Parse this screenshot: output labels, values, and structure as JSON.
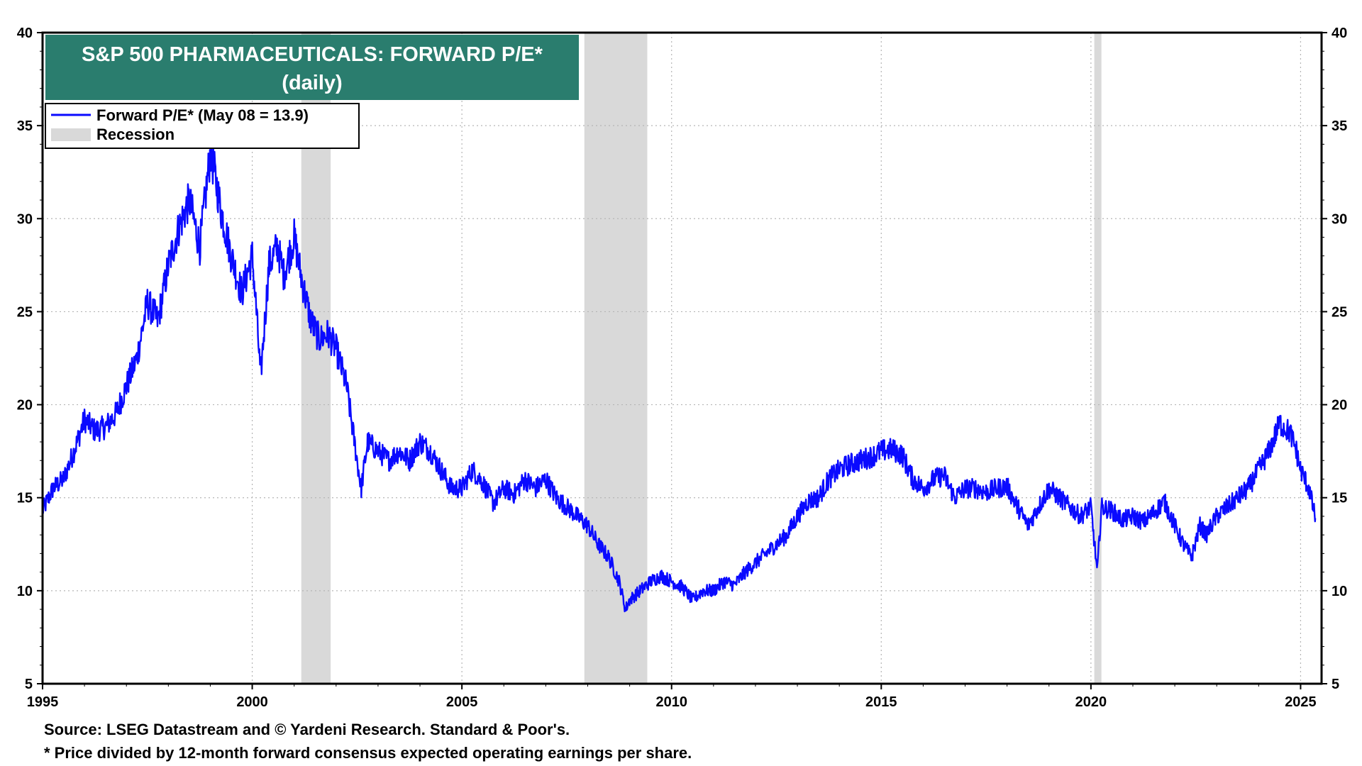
{
  "chart_data": {
    "type": "line",
    "title": "S&P 500 PHARMACEUTICALS: FORWARD P/E*",
    "subtitle": "(daily)",
    "frequency": "daily",
    "xlim": [
      1995.0,
      2025.5
    ],
    "ylim": [
      5,
      40
    ],
    "x_ticks": [
      "1995",
      "2000",
      "2005",
      "2010",
      "2015",
      "2020",
      "2025"
    ],
    "y_ticks": [
      "5",
      "10",
      "15",
      "20",
      "25",
      "30",
      "35",
      "40"
    ],
    "grid": true,
    "legend_position": "top-left",
    "legend": [
      {
        "label": "Forward P/E* (May 08 = 13.9)",
        "color": "#0a0aff",
        "kind": "line"
      },
      {
        "label": "Recession",
        "color": "#d9d9d9",
        "kind": "band"
      }
    ],
    "recessions": [
      [
        2001.17,
        2001.87
      ],
      [
        2007.92,
        2009.42
      ],
      [
        2020.08,
        2020.25
      ]
    ],
    "series": [
      {
        "name": "Forward P/E* (May 08 = 13.9)",
        "color": "#0a0aff",
        "x": [
          1995.0,
          1995.25,
          1995.5,
          1995.75,
          1996.0,
          1996.25,
          1996.5,
          1996.75,
          1997.0,
          1997.25,
          1997.5,
          1997.75,
          1998.0,
          1998.25,
          1998.5,
          1998.75,
          1999.0,
          1999.1,
          1999.25,
          1999.5,
          1999.75,
          2000.0,
          2000.1,
          2000.2,
          2000.4,
          2000.6,
          2000.75,
          2001.0,
          2001.2,
          2001.4,
          2001.6,
          2001.8,
          2002.0,
          2002.25,
          2002.5,
          2002.6,
          2002.75,
          2003.0,
          2003.25,
          2003.5,
          2003.75,
          2004.0,
          2004.25,
          2004.5,
          2004.75,
          2005.0,
          2005.25,
          2005.5,
          2005.75,
          2006.0,
          2006.25,
          2006.5,
          2006.75,
          2007.0,
          2007.25,
          2007.5,
          2007.75,
          2008.0,
          2008.25,
          2008.5,
          2008.75,
          2008.9,
          2009.0,
          2009.25,
          2009.5,
          2009.75,
          2010.0,
          2010.25,
          2010.5,
          2010.75,
          2011.0,
          2011.25,
          2011.5,
          2011.75,
          2012.0,
          2012.25,
          2012.5,
          2012.75,
          2013.0,
          2013.25,
          2013.5,
          2013.75,
          2014.0,
          2014.25,
          2014.5,
          2014.75,
          2015.0,
          2015.25,
          2015.5,
          2015.75,
          2016.0,
          2016.25,
          2016.5,
          2016.75,
          2017.0,
          2017.25,
          2017.5,
          2017.75,
          2018.0,
          2018.25,
          2018.5,
          2018.75,
          2019.0,
          2019.25,
          2019.5,
          2019.75,
          2020.0,
          2020.15,
          2020.25,
          2020.5,
          2020.75,
          2021.0,
          2021.25,
          2021.5,
          2021.75,
          2022.0,
          2022.2,
          2022.4,
          2022.6,
          2022.75,
          2023.0,
          2023.25,
          2023.5,
          2023.75,
          2024.0,
          2024.25,
          2024.5,
          2024.75,
          2024.9,
          2025.0,
          2025.2,
          2025.35
        ],
        "values": [
          14.3,
          15.5,
          16.0,
          17.5,
          19.2,
          18.6,
          18.8,
          19.5,
          21.0,
          22.5,
          25.5,
          24.5,
          27.5,
          29.5,
          31.0,
          28.5,
          33.5,
          32.5,
          30.5,
          28.0,
          26.0,
          28.0,
          25.0,
          21.5,
          27.5,
          28.5,
          27.0,
          29.0,
          26.5,
          24.5,
          23.5,
          23.8,
          23.0,
          21.0,
          17.0,
          15.5,
          18.0,
          17.5,
          17.0,
          17.5,
          17.0,
          18.0,
          17.5,
          16.5,
          15.5,
          15.5,
          16.5,
          15.8,
          14.7,
          15.5,
          15.2,
          16.0,
          15.5,
          16.0,
          15.0,
          14.5,
          14.0,
          13.5,
          12.5,
          11.8,
          10.5,
          9.0,
          9.5,
          10.0,
          10.5,
          10.8,
          10.5,
          10.2,
          9.5,
          10.0,
          10.0,
          10.5,
          10.3,
          11.0,
          11.5,
          12.0,
          12.5,
          13.0,
          14.0,
          14.8,
          15.0,
          16.0,
          16.5,
          16.8,
          17.0,
          17.2,
          17.5,
          17.6,
          17.3,
          16.0,
          15.5,
          16.0,
          16.2,
          15.0,
          15.5,
          15.5,
          15.3,
          15.5,
          15.6,
          14.5,
          13.5,
          14.5,
          15.5,
          15.0,
          14.5,
          14.0,
          14.5,
          11.0,
          14.5,
          14.3,
          13.8,
          14.0,
          13.7,
          14.2,
          14.8,
          13.5,
          12.5,
          11.8,
          13.5,
          13.0,
          14.0,
          14.5,
          15.0,
          15.5,
          16.5,
          17.5,
          19.0,
          18.5,
          17.5,
          16.5,
          15.5,
          13.9
        ]
      }
    ]
  },
  "notes": {
    "source": "Source: LSEG Datastream and © Yardeni Research. Standard & Poor's.",
    "footnote": "* Price divided by 12-month forward consensus expected operating earnings per share."
  }
}
